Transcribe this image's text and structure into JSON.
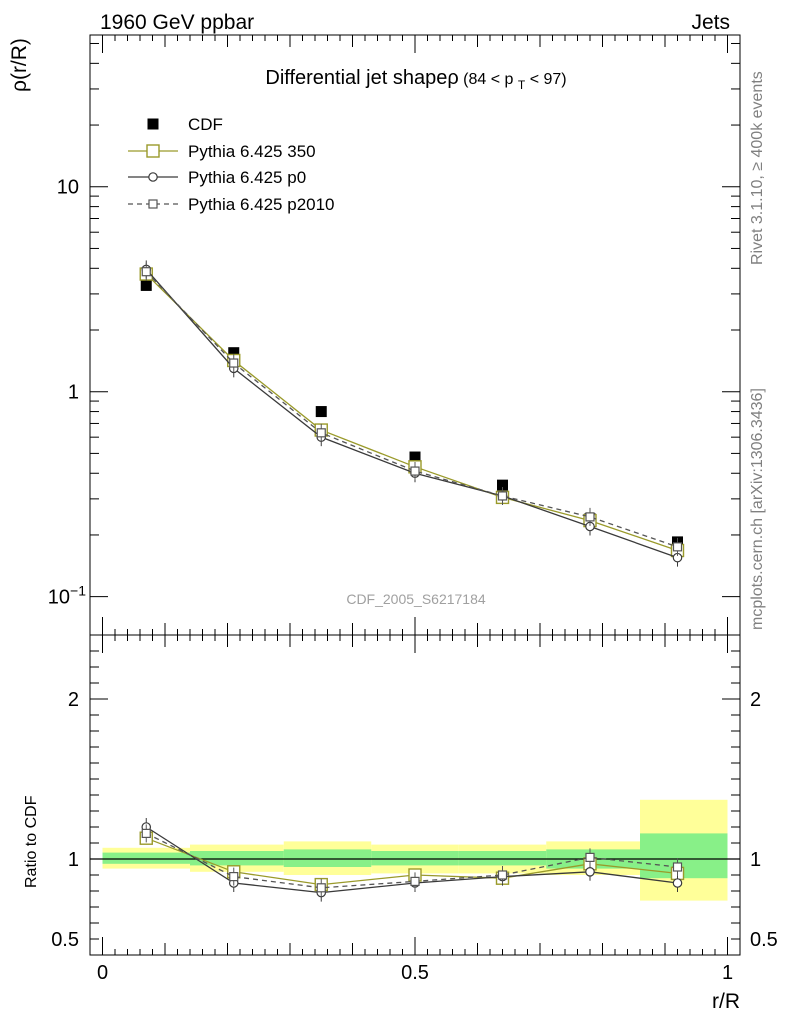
{
  "header": {
    "left": "1960 GeV ppbar",
    "right": "Jets"
  },
  "side_labels": {
    "rivet": "Rivet 3.1.10, ≥ 400k events",
    "mcplots": "mcplots.cern.ch [arXiv:1306.3436]"
  },
  "watermark": "CDF_2005_S6217184",
  "colors": {
    "cdf": "#000000",
    "p350": "#9a9a2a",
    "p0": "#3a3a3a",
    "p2010": "#555555",
    "band_outer": "#ffff99",
    "band_inner": "#88f088"
  },
  "chart_data": [
    {
      "type": "line",
      "title_main": "Differential jet shapeρ",
      "title_cut": "(84 < p",
      "title_sub": "T",
      "title_end": " < 97)",
      "xlabel": "r/R",
      "ylabel": "ρ(r/R)",
      "yscale": "log",
      "xlim": [
        -0.02,
        1.02
      ],
      "ylim": [
        0.065,
        55
      ],
      "yticks": [
        {
          "value": 10,
          "label": "10"
        },
        {
          "value": 1,
          "label": "1"
        },
        {
          "value": 0.1,
          "label": "10",
          "sup": "−1"
        }
      ],
      "legend_placement": "top-left",
      "x": [
        0.07,
        0.21,
        0.35,
        0.5,
        0.64,
        0.78,
        0.92
      ],
      "series": [
        {
          "name": "CDF",
          "style": "filled-square",
          "values": [
            3.3,
            1.55,
            0.8,
            0.48,
            0.35,
            0.24,
            0.185
          ]
        },
        {
          "name": "Pythia 6.425 350",
          "style": "open-square-solid",
          "values": [
            3.75,
            1.42,
            0.65,
            0.43,
            0.305,
            0.235,
            0.168
          ]
        },
        {
          "name": "Pythia 6.425 p0",
          "style": "open-circle-solid",
          "values": [
            3.95,
            1.3,
            0.6,
            0.4,
            0.31,
            0.22,
            0.155
          ]
        },
        {
          "name": "Pythia 6.425 p2010",
          "style": "open-square-dashed",
          "values": [
            3.85,
            1.38,
            0.63,
            0.41,
            0.31,
            0.245,
            0.175
          ]
        }
      ]
    },
    {
      "type": "line",
      "xlabel": "r/R",
      "ylabel": "Ratio to CDF",
      "xlim": [
        -0.02,
        1.02
      ],
      "ylim": [
        0.4,
        2.4
      ],
      "yticks": [
        {
          "value": 0.5,
          "label": "0.5"
        },
        {
          "value": 1,
          "label": "1"
        },
        {
          "value": 2,
          "label": "2"
        }
      ],
      "xticks": [
        {
          "value": 0,
          "label": "0"
        },
        {
          "value": 0.5,
          "label": "0.5"
        },
        {
          "value": 1,
          "label": "1"
        }
      ],
      "reference": 1,
      "bands": [
        {
          "x0": 0.0,
          "x1": 0.14,
          "outer": [
            0.94,
            1.07
          ],
          "inner": [
            0.97,
            1.04
          ]
        },
        {
          "x0": 0.14,
          "x1": 0.29,
          "outer": [
            0.92,
            1.09
          ],
          "inner": [
            0.96,
            1.05
          ]
        },
        {
          "x0": 0.29,
          "x1": 0.43,
          "outer": [
            0.9,
            1.11
          ],
          "inner": [
            0.95,
            1.06
          ]
        },
        {
          "x0": 0.43,
          "x1": 0.57,
          "outer": [
            0.91,
            1.09
          ],
          "inner": [
            0.96,
            1.05
          ]
        },
        {
          "x0": 0.57,
          "x1": 0.71,
          "outer": [
            0.91,
            1.09
          ],
          "inner": [
            0.96,
            1.05
          ]
        },
        {
          "x0": 0.71,
          "x1": 0.86,
          "outer": [
            0.9,
            1.11
          ],
          "inner": [
            0.94,
            1.06
          ]
        },
        {
          "x0": 0.86,
          "x1": 1.0,
          "outer": [
            0.74,
            1.37
          ],
          "inner": [
            0.88,
            1.16
          ]
        }
      ],
      "x": [
        0.07,
        0.21,
        0.35,
        0.5,
        0.64,
        0.78,
        0.92
      ],
      "series": [
        {
          "name": "Pythia 6.425 350",
          "style": "open-square-solid",
          "values": [
            1.13,
            0.92,
            0.84,
            0.9,
            0.88,
            0.97,
            0.91
          ]
        },
        {
          "name": "Pythia 6.425 p0",
          "style": "open-circle-solid",
          "values": [
            1.2,
            0.85,
            0.79,
            0.85,
            0.89,
            0.92,
            0.85
          ]
        },
        {
          "name": "Pythia 6.425 p2010",
          "style": "open-square-dashed",
          "values": [
            1.16,
            0.89,
            0.82,
            0.86,
            0.9,
            1.01,
            0.95
          ]
        }
      ]
    }
  ]
}
